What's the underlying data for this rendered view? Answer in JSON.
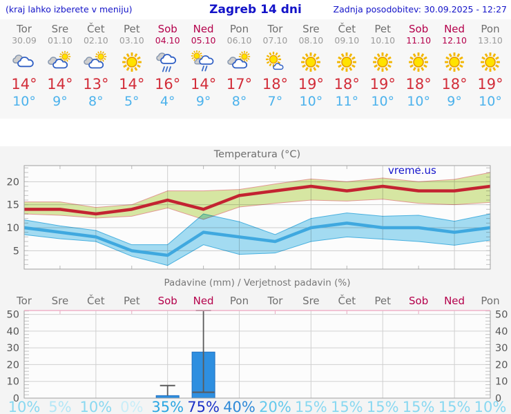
{
  "header": {
    "hint": "(kraj lahko izberete v meniju)",
    "title": "Zagreb 14 dni",
    "updated": "Zadnja posodobitev: 30.09.2025 - 12:27"
  },
  "watermark": "vreme.us",
  "forecast": {
    "days": [
      {
        "name": "Tor",
        "date": "30.09",
        "weekend": false,
        "icon": "cloudy",
        "high": "14°",
        "low": "10°"
      },
      {
        "name": "Sre",
        "date": "01.10",
        "weekend": false,
        "icon": "partly-cloudy",
        "high": "14°",
        "low": "9°"
      },
      {
        "name": "Čet",
        "date": "02.10",
        "weekend": false,
        "icon": "partly-cloudy",
        "high": "13°",
        "low": "8°"
      },
      {
        "name": "Pet",
        "date": "03.10",
        "weekend": false,
        "icon": "sunny",
        "high": "14°",
        "low": "5°"
      },
      {
        "name": "Sob",
        "date": "04.10",
        "weekend": true,
        "icon": "rain",
        "high": "16°",
        "low": "4°"
      },
      {
        "name": "Ned",
        "date": "05.10",
        "weekend": true,
        "icon": "sun-shower",
        "high": "14°",
        "low": "9°"
      },
      {
        "name": "Pon",
        "date": "06.10",
        "weekend": false,
        "icon": "partly-cloudy",
        "high": "17°",
        "low": "8°"
      },
      {
        "name": "Tor",
        "date": "07.10",
        "weekend": false,
        "icon": "mostly-sunny",
        "high": "18°",
        "low": "7°"
      },
      {
        "name": "Sre",
        "date": "08.10",
        "weekend": false,
        "icon": "sunny",
        "high": "19°",
        "low": "10°"
      },
      {
        "name": "Čet",
        "date": "09.10",
        "weekend": false,
        "icon": "sunny",
        "high": "18°",
        "low": "11°"
      },
      {
        "name": "Pet",
        "date": "10.10",
        "weekend": false,
        "icon": "sunny",
        "high": "19°",
        "low": "10°"
      },
      {
        "name": "Sob",
        "date": "11.10",
        "weekend": true,
        "icon": "sunny",
        "high": "18°",
        "low": "10°"
      },
      {
        "name": "Ned",
        "date": "12.10",
        "weekend": true,
        "icon": "sunny",
        "high": "18°",
        "low": "9°"
      },
      {
        "name": "Pon",
        "date": "13.10",
        "weekend": false,
        "icon": "sunny",
        "high": "19°",
        "low": "10°"
      }
    ]
  },
  "chart_data": [
    {
      "type": "line",
      "title": "Temperatura (°C)",
      "x_labels": [
        "Tor",
        "Sre",
        "Čet",
        "Pet",
        "Sob",
        "Ned",
        "Pon",
        "Tor",
        "Sre",
        "Čet",
        "Pet",
        "Sob",
        "Ned",
        "Pon"
      ],
      "ylim": [
        1,
        23.5
      ],
      "yticks": [
        5,
        10,
        15,
        20
      ],
      "grid_x_indices": [
        2,
        4,
        6,
        8,
        10,
        12
      ],
      "series": [
        {
          "name": "high",
          "color": "#c32331",
          "values": [
            14,
            14,
            13,
            14,
            16,
            14,
            17,
            18,
            19,
            18,
            19,
            18,
            18,
            19
          ]
        },
        {
          "name": "high_range_max",
          "values": [
            15.6,
            15.6,
            14.4,
            15,
            18,
            18,
            18.3,
            19.5,
            20.6,
            20,
            20.8,
            20,
            20.5,
            22
          ]
        },
        {
          "name": "high_range_min",
          "values": [
            13,
            12.7,
            12.1,
            12.5,
            14.3,
            11.8,
            14.5,
            15.3,
            16,
            15.8,
            16.2,
            15.3,
            15,
            15.5
          ]
        },
        {
          "name": "low",
          "color": "#3fa8df",
          "values": [
            10,
            9,
            8,
            5,
            4,
            9,
            8,
            7,
            10,
            11,
            10,
            10,
            9,
            10
          ]
        },
        {
          "name": "low_range_max",
          "values": [
            11.7,
            10.4,
            9.4,
            6.3,
            6.3,
            13,
            11.3,
            8.5,
            12,
            13.2,
            12.5,
            12.7,
            11.4,
            13
          ]
        },
        {
          "name": "low_range_min",
          "values": [
            8.5,
            7.6,
            7,
            3.8,
            1.8,
            6.3,
            4.2,
            4.5,
            7,
            8,
            7.5,
            7,
            6.2,
            7.3
          ]
        }
      ]
    },
    {
      "type": "bar",
      "title": "Padavine (mm) / Verjetnost padavin (%)",
      "categories": [
        "Tor",
        "Sre",
        "Čet",
        "Pet",
        "Sob",
        "Ned",
        "Pon",
        "Tor",
        "Sre",
        "Čet",
        "Pet",
        "Sob",
        "Ned",
        "Pon"
      ],
      "values": [
        0,
        0,
        0,
        0,
        1.5,
        27.5,
        0,
        0,
        0,
        0,
        0,
        0,
        0,
        0
      ],
      "whiskers": [
        null,
        null,
        null,
        null,
        {
          "lo": 1.5,
          "hi": 7.5,
          "lo_cap": false,
          "hi_cap": true
        },
        {
          "lo": 3.5,
          "hi": 52.3,
          "lo_cap": true,
          "hi_cap": true
        },
        null,
        null,
        null,
        null,
        null,
        null,
        null,
        null
      ],
      "probabilities": [
        "10%",
        "5%",
        "10%",
        "0%",
        "35%",
        "75%",
        "40%",
        "20%",
        "15%",
        "15%",
        "15%",
        "15%",
        "15%",
        "10%"
      ],
      "ylim": [
        0,
        52.3
      ],
      "yticks": [
        0,
        10,
        20,
        30,
        40,
        50
      ]
    }
  ],
  "colors": {
    "link_blue": "#1313c8",
    "weekend": "#b4004b",
    "day_gray": "#6f6f6f",
    "date_gray": "#9a9a9a",
    "high_red": "#d22d39",
    "low_blue": "#4cb2ec",
    "band_green": "#d9e9a4",
    "band_blue": "#a5def4",
    "bar_blue": "#2e8fe0",
    "prob_colors": {
      "0%": "#c9edf8",
      "5%": "#b3e6f6",
      "10%": "#89d8f1",
      "15%": "#89d8f1",
      "20%": "#64c9ec",
      "35%": "#2ba6e2",
      "40%": "#2f8ad8",
      "75%": "#1c33c7"
    }
  }
}
